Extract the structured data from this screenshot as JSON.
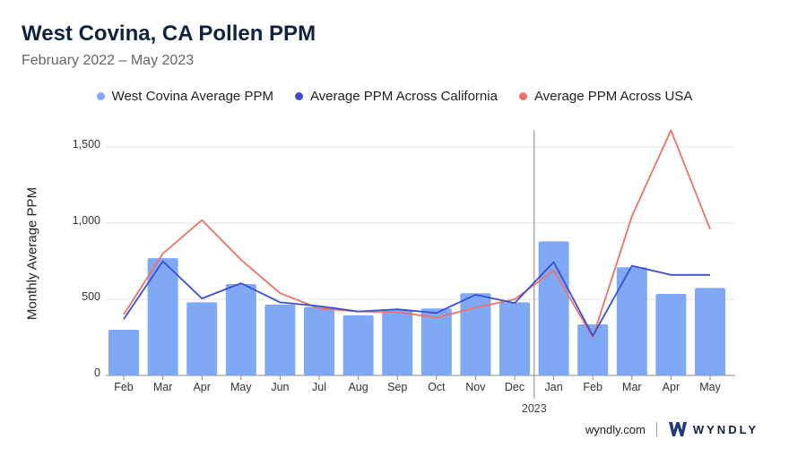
{
  "header": {
    "title": "West Covina, CA Pollen PPM",
    "subtitle": "February 2022 – May 2023"
  },
  "colors": {
    "bar": "#7fa8f5",
    "california": "#3a4fd6",
    "usa": "#ee7166",
    "grid": "#e3e3e3",
    "divider": "#9a9a9a"
  },
  "footer": {
    "site": "wyndly.com",
    "brand": "WYNDLY",
    "logo_icon": "wyndly-logo-icon"
  },
  "chart_data": {
    "type": "bar",
    "ylabel": "Monthly Average PPM",
    "xlabel": "",
    "ylim": [
      0,
      1600
    ],
    "yticks": [
      0,
      500,
      1000,
      1500
    ],
    "ytick_labels": [
      "0",
      "500",
      "1,000",
      "1,500"
    ],
    "categories": [
      "Feb",
      "Mar",
      "Apr",
      "May",
      "Jun",
      "Jul",
      "Aug",
      "Sep",
      "Oct",
      "Nov",
      "Dec",
      "Jan",
      "Feb",
      "Mar",
      "Apr",
      "May"
    ],
    "year_marker": {
      "label": "2023",
      "before_category_index": 11
    },
    "grid": true,
    "legend_position": "top",
    "series": [
      {
        "name": "West Covina Average PPM",
        "kind": "bar",
        "values": [
          300,
          770,
          480,
          600,
          465,
          450,
          395,
          430,
          440,
          540,
          480,
          880,
          335,
          710,
          535,
          575
        ]
      },
      {
        "name": "Average PPM Across California",
        "kind": "line",
        "values": [
          370,
          750,
          505,
          605,
          480,
          455,
          420,
          435,
          410,
          530,
          475,
          745,
          260,
          720,
          660,
          660
        ]
      },
      {
        "name": "Average PPM Across USA",
        "kind": "line",
        "values": [
          400,
          800,
          1020,
          760,
          540,
          440,
          420,
          415,
          380,
          445,
          500,
          690,
          250,
          1045,
          1610,
          960
        ]
      }
    ]
  }
}
